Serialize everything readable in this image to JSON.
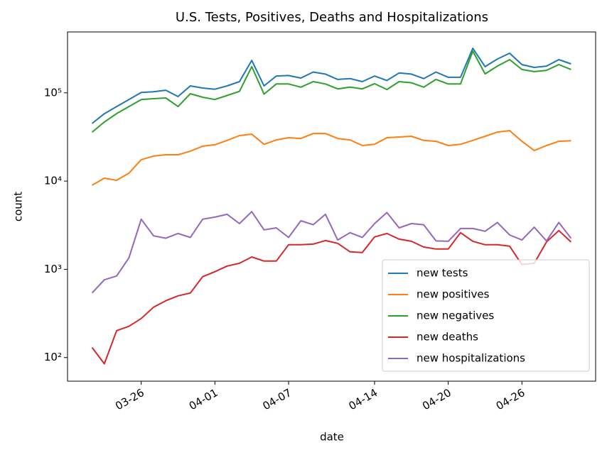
{
  "chart_data": {
    "type": "line",
    "title": "U.S. Tests, Positives, Deaths and Hospitalizations",
    "xlabel": "date",
    "ylabel": "count",
    "x": [
      "03-22",
      "03-23",
      "03-24",
      "03-25",
      "03-26",
      "03-27",
      "03-28",
      "03-29",
      "03-30",
      "03-31",
      "04-01",
      "04-02",
      "04-03",
      "04-04",
      "04-05",
      "04-06",
      "04-07",
      "04-08",
      "04-09",
      "04-10",
      "04-11",
      "04-12",
      "04-13",
      "04-14",
      "04-15",
      "04-16",
      "04-17",
      "04-18",
      "04-19",
      "04-20",
      "04-21",
      "04-22",
      "04-23",
      "04-24",
      "04-25",
      "04-26",
      "04-27",
      "04-28",
      "04-29",
      "04-30"
    ],
    "xlim": [
      "03-20",
      "05-02"
    ],
    "xticks": [
      "03-26",
      "04-01",
      "04-07",
      "04-14",
      "04-20",
      "04-26"
    ],
    "ylim": [
      54,
      490000
    ],
    "yscale": "log",
    "yticks": [
      {
        "value": 100,
        "label": "10²"
      },
      {
        "value": 1000,
        "label": "10³"
      },
      {
        "value": 10000,
        "label": "10⁴"
      },
      {
        "value": 100000,
        "label": "10⁵"
      }
    ],
    "legend": "lower right",
    "series": [
      {
        "name": "new tests",
        "color": "#1f77b4",
        "values": [
          45000,
          58000,
          70000,
          84000,
          101000,
          103000,
          107000,
          90800,
          120000,
          113500,
          110000,
          120000,
          134000,
          233000,
          120000,
          155000,
          157000,
          147000,
          172000,
          163000,
          142000,
          145000,
          134000,
          155000,
          138000,
          168000,
          163000,
          145000,
          172000,
          150000,
          150000,
          320000,
          198000,
          242000,
          281000,
          209000,
          194000,
          201000,
          238000,
          213000
        ]
      },
      {
        "name": "new positives",
        "color": "#ff7f0e",
        "values": [
          8980,
          10800,
          10200,
          12300,
          17500,
          19200,
          19900,
          19900,
          21800,
          24900,
          25800,
          28900,
          32800,
          34000,
          26100,
          29300,
          31000,
          30400,
          34600,
          34600,
          30400,
          29300,
          25300,
          26100,
          31000,
          31600,
          32200,
          28900,
          28200,
          25300,
          26100,
          28900,
          32200,
          35900,
          37300,
          28200,
          22200,
          25300,
          28200,
          28700
        ]
      },
      {
        "name": "new negatives",
        "color": "#2ca02c",
        "values": [
          35900,
          46700,
          58200,
          70000,
          84000,
          85900,
          87500,
          70000,
          97800,
          89100,
          84000,
          93300,
          104000,
          198000,
          96800,
          126000,
          126000,
          116000,
          134000,
          126000,
          111000,
          116000,
          111000,
          127000,
          109000,
          134000,
          130000,
          116000,
          142000,
          126000,
          126000,
          297000,
          164000,
          201000,
          238000,
          184000,
          174000,
          180000,
          209000,
          184000
        ]
      },
      {
        "name": "new deaths",
        "color": "#d62728",
        "values": [
          130,
          85,
          202,
          226,
          277,
          372,
          440,
          500,
          539,
          825,
          939,
          1090,
          1170,
          1380,
          1240,
          1240,
          1900,
          1900,
          1930,
          2120,
          1970,
          1580,
          1550,
          2330,
          2550,
          2200,
          2080,
          1790,
          1700,
          1700,
          2600,
          2080,
          1900,
          1900,
          1830,
          1130,
          1170,
          2040,
          2750,
          2040
        ]
      },
      {
        "name": "new hospitalizations",
        "color": "#9467bd",
        "values": [
          540,
          760,
          840,
          1350,
          3700,
          2400,
          2250,
          2550,
          2300,
          3700,
          3900,
          4200,
          3300,
          4500,
          2800,
          2950,
          2300,
          3550,
          3200,
          4200,
          2150,
          2600,
          2300,
          3300,
          4400,
          2950,
          3300,
          3200,
          2100,
          2080,
          2900,
          2900,
          2700,
          3400,
          2450,
          2150,
          3000,
          2100,
          3400,
          2250
        ]
      }
    ]
  }
}
